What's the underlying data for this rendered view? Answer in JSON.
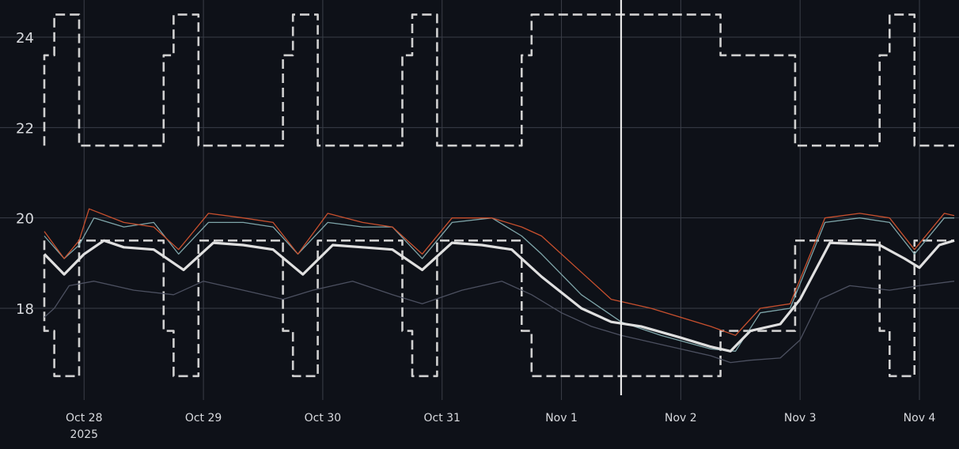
{
  "chart_data": {
    "type": "line",
    "title": "",
    "xlabel": "",
    "ylabel": "",
    "x_axis": {
      "ticks": [
        "2025-10-28",
        "2025-10-29",
        "2025-10-30",
        "2025-10-31",
        "2025-11-01",
        "2025-11-02",
        "2025-11-03",
        "2025-11-04"
      ],
      "tick_labels": [
        "Oct 28",
        "Oct 29",
        "Oct 30",
        "Oct 31",
        "Nov 1",
        "Nov 2",
        "Nov 3",
        "Nov 4"
      ],
      "year_label": "2025",
      "range": [
        "2025-10-27 16:00",
        "2025-11-04 07:00"
      ]
    },
    "y_axis": {
      "ticks": [
        18,
        20,
        22,
        24
      ],
      "range": [
        16.1,
        24.6
      ]
    },
    "grid": true,
    "now_marker": "2025-11-01 12:00",
    "colors": {
      "background": "#0e1118",
      "grid": "#3a3e48",
      "tick_text": "#d8dade",
      "setpoint": "#d0d0d0",
      "main": "#e0e0e0",
      "orange": "#c8502e",
      "teal": "#7fa6aa",
      "faint": "#4c5060",
      "now_line": "#e8e8e8"
    },
    "series": [
      {
        "role": "upper-setpoint",
        "style": "dashed",
        "color": "#d0d0d0",
        "points": [
          [
            "2025-10-27 16:00",
            21.6
          ],
          [
            "2025-10-27 16:00",
            23.6
          ],
          [
            "2025-10-27 18:00",
            23.6
          ],
          [
            "2025-10-27 18:00",
            24.5
          ],
          [
            "2025-10-27 23:00",
            24.5
          ],
          [
            "2025-10-27 23:00",
            21.6
          ],
          [
            "2025-10-28 16:00",
            21.6
          ],
          [
            "2025-10-28 16:00",
            23.6
          ],
          [
            "2025-10-28 18:00",
            23.6
          ],
          [
            "2025-10-28 18:00",
            24.5
          ],
          [
            "2025-10-28 23:00",
            24.5
          ],
          [
            "2025-10-28 23:00",
            21.6
          ],
          [
            "2025-10-29 16:00",
            21.6
          ],
          [
            "2025-10-29 16:00",
            23.6
          ],
          [
            "2025-10-29 18:00",
            23.6
          ],
          [
            "2025-10-29 18:00",
            24.5
          ],
          [
            "2025-10-29 23:00",
            24.5
          ],
          [
            "2025-10-29 23:00",
            21.6
          ],
          [
            "2025-10-30 16:00",
            21.6
          ],
          [
            "2025-10-30 16:00",
            23.6
          ],
          [
            "2025-10-30 18:00",
            23.6
          ],
          [
            "2025-10-30 18:00",
            24.5
          ],
          [
            "2025-10-30 23:00",
            24.5
          ],
          [
            "2025-10-30 23:00",
            21.6
          ],
          [
            "2025-10-31 16:00",
            21.6
          ],
          [
            "2025-10-31 16:00",
            23.6
          ],
          [
            "2025-10-31 18:00",
            23.6
          ],
          [
            "2025-10-31 18:00",
            24.5
          ],
          [
            "2025-11-02 08:00",
            24.5
          ],
          [
            "2025-11-02 08:00",
            23.6
          ],
          [
            "2025-11-02 23:00",
            23.6
          ],
          [
            "2025-11-02 23:00",
            21.6
          ],
          [
            "2025-11-03 16:00",
            21.6
          ],
          [
            "2025-11-03 16:00",
            23.6
          ],
          [
            "2025-11-03 18:00",
            23.6
          ],
          [
            "2025-11-03 18:00",
            24.5
          ],
          [
            "2025-11-03 23:00",
            24.5
          ],
          [
            "2025-11-03 23:00",
            21.6
          ],
          [
            "2025-11-04 07:00",
            21.6
          ]
        ]
      },
      {
        "role": "lower-setpoint",
        "style": "dashed",
        "color": "#d0d0d0",
        "points": [
          [
            "2025-10-27 16:00",
            19.5
          ],
          [
            "2025-10-27 16:00",
            17.5
          ],
          [
            "2025-10-27 18:00",
            17.5
          ],
          [
            "2025-10-27 18:00",
            16.5
          ],
          [
            "2025-10-27 23:00",
            16.5
          ],
          [
            "2025-10-27 23:00",
            19.5
          ],
          [
            "2025-10-28 16:00",
            19.5
          ],
          [
            "2025-10-28 16:00",
            17.5
          ],
          [
            "2025-10-28 18:00",
            17.5
          ],
          [
            "2025-10-28 18:00",
            16.5
          ],
          [
            "2025-10-28 23:00",
            16.5
          ],
          [
            "2025-10-28 23:00",
            19.5
          ],
          [
            "2025-10-29 16:00",
            19.5
          ],
          [
            "2025-10-29 16:00",
            17.5
          ],
          [
            "2025-10-29 18:00",
            17.5
          ],
          [
            "2025-10-29 18:00",
            16.5
          ],
          [
            "2025-10-29 23:00",
            16.5
          ],
          [
            "2025-10-29 23:00",
            19.5
          ],
          [
            "2025-10-30 16:00",
            19.5
          ],
          [
            "2025-10-30 16:00",
            17.5
          ],
          [
            "2025-10-30 18:00",
            17.5
          ],
          [
            "2025-10-30 18:00",
            16.5
          ],
          [
            "2025-10-30 23:00",
            16.5
          ],
          [
            "2025-10-30 23:00",
            19.5
          ],
          [
            "2025-10-31 16:00",
            19.5
          ],
          [
            "2025-10-31 16:00",
            17.5
          ],
          [
            "2025-10-31 18:00",
            17.5
          ],
          [
            "2025-10-31 18:00",
            16.5
          ],
          [
            "2025-11-02 08:00",
            16.5
          ],
          [
            "2025-11-02 08:00",
            17.5
          ],
          [
            "2025-11-02 23:00",
            17.5
          ],
          [
            "2025-11-02 23:00",
            19.5
          ],
          [
            "2025-11-03 16:00",
            19.5
          ],
          [
            "2025-11-03 16:00",
            17.5
          ],
          [
            "2025-11-03 18:00",
            17.5
          ],
          [
            "2025-11-03 18:00",
            16.5
          ],
          [
            "2025-11-03 23:00",
            16.5
          ],
          [
            "2025-11-03 23:00",
            19.5
          ],
          [
            "2025-11-04 07:00",
            19.5
          ]
        ]
      },
      {
        "role": "faint-temperature",
        "style": "solid",
        "color": "#4c5060",
        "points": [
          [
            "2025-10-27 16:00",
            17.8
          ],
          [
            "2025-10-27 18:00",
            18.0
          ],
          [
            "2025-10-27 21:00",
            18.5
          ],
          [
            "2025-10-28 02:00",
            18.6
          ],
          [
            "2025-10-28 10:00",
            18.4
          ],
          [
            "2025-10-28 18:00",
            18.3
          ],
          [
            "2025-10-29 00:00",
            18.6
          ],
          [
            "2025-10-29 08:00",
            18.4
          ],
          [
            "2025-10-29 16:00",
            18.2
          ],
          [
            "2025-10-29 22:00",
            18.4
          ],
          [
            "2025-10-30 06:00",
            18.6
          ],
          [
            "2025-10-30 14:00",
            18.3
          ],
          [
            "2025-10-30 20:00",
            18.1
          ],
          [
            "2025-10-31 04:00",
            18.4
          ],
          [
            "2025-10-31 12:00",
            18.6
          ],
          [
            "2025-10-31 18:00",
            18.3
          ],
          [
            "2025-11-01 00:00",
            17.9
          ],
          [
            "2025-11-01 06:00",
            17.6
          ],
          [
            "2025-11-01 12:00",
            17.4
          ],
          [
            "2025-11-01 20:00",
            17.2
          ],
          [
            "2025-11-02 06:00",
            16.95
          ],
          [
            "2025-11-02 10:00",
            16.8
          ],
          [
            "2025-11-02 14:00",
            16.85
          ],
          [
            "2025-11-02 20:00",
            16.9
          ],
          [
            "2025-11-03 00:00",
            17.3
          ],
          [
            "2025-11-03 04:00",
            18.2
          ],
          [
            "2025-11-03 10:00",
            18.5
          ],
          [
            "2025-11-03 18:00",
            18.4
          ],
          [
            "2025-11-04 00:00",
            18.5
          ],
          [
            "2025-11-04 07:00",
            18.6
          ]
        ]
      },
      {
        "role": "teal-temperature",
        "style": "solid",
        "color": "#7fa6aa",
        "points": [
          [
            "2025-10-27 16:00",
            19.6
          ],
          [
            "2025-10-27 20:00",
            19.1
          ],
          [
            "2025-10-27 23:00",
            19.4
          ],
          [
            "2025-10-28 02:00",
            20.0
          ],
          [
            "2025-10-28 08:00",
            19.8
          ],
          [
            "2025-10-28 14:00",
            19.9
          ],
          [
            "2025-10-28 19:00",
            19.2
          ],
          [
            "2025-10-29 01:00",
            19.9
          ],
          [
            "2025-10-29 08:00",
            19.9
          ],
          [
            "2025-10-29 14:00",
            19.8
          ],
          [
            "2025-10-29 19:00",
            19.2
          ],
          [
            "2025-10-30 01:00",
            19.9
          ],
          [
            "2025-10-30 08:00",
            19.8
          ],
          [
            "2025-10-30 14:00",
            19.8
          ],
          [
            "2025-10-30 20:00",
            19.1
          ],
          [
            "2025-10-31 02:00",
            19.9
          ],
          [
            "2025-10-31 10:00",
            20.0
          ],
          [
            "2025-10-31 16:00",
            19.6
          ],
          [
            "2025-10-31 20:00",
            19.2
          ],
          [
            "2025-11-01 04:00",
            18.3
          ],
          [
            "2025-11-01 12:00",
            17.7
          ],
          [
            "2025-11-01 20:00",
            17.4
          ],
          [
            "2025-11-02 06:00",
            17.1
          ],
          [
            "2025-11-02 11:00",
            17.05
          ],
          [
            "2025-11-02 16:00",
            17.9
          ],
          [
            "2025-11-02 22:00",
            18.0
          ],
          [
            "2025-11-03 05:00",
            19.9
          ],
          [
            "2025-11-03 12:00",
            20.0
          ],
          [
            "2025-11-03 18:00",
            19.9
          ],
          [
            "2025-11-03 23:00",
            19.2
          ],
          [
            "2025-11-04 05:00",
            20.0
          ],
          [
            "2025-11-04 07:00",
            20.0
          ]
        ]
      },
      {
        "role": "orange-temperature",
        "style": "solid",
        "color": "#c8502e",
        "points": [
          [
            "2025-10-27 16:00",
            19.7
          ],
          [
            "2025-10-27 20:00",
            19.1
          ],
          [
            "2025-10-27 23:00",
            19.5
          ],
          [
            "2025-10-28 01:00",
            20.2
          ],
          [
            "2025-10-28 08:00",
            19.9
          ],
          [
            "2025-10-28 14:00",
            19.8
          ],
          [
            "2025-10-28 19:00",
            19.3
          ],
          [
            "2025-10-29 01:00",
            20.1
          ],
          [
            "2025-10-29 08:00",
            20.0
          ],
          [
            "2025-10-29 14:00",
            19.9
          ],
          [
            "2025-10-29 19:00",
            19.2
          ],
          [
            "2025-10-30 01:00",
            20.1
          ],
          [
            "2025-10-30 08:00",
            19.9
          ],
          [
            "2025-10-30 14:00",
            19.8
          ],
          [
            "2025-10-30 20:00",
            19.2
          ],
          [
            "2025-10-31 02:00",
            20.0
          ],
          [
            "2025-10-31 10:00",
            20.0
          ],
          [
            "2025-10-31 16:00",
            19.8
          ],
          [
            "2025-10-31 20:00",
            19.6
          ],
          [
            "2025-11-01 04:00",
            18.8
          ],
          [
            "2025-11-01 10:00",
            18.2
          ],
          [
            "2025-11-01 18:00",
            18.0
          ],
          [
            "2025-11-02 06:00",
            17.6
          ],
          [
            "2025-11-02 11:00",
            17.4
          ],
          [
            "2025-11-02 16:00",
            18.0
          ],
          [
            "2025-11-02 22:00",
            18.1
          ],
          [
            "2025-11-03 05:00",
            20.0
          ],
          [
            "2025-11-03 12:00",
            20.1
          ],
          [
            "2025-11-03 18:00",
            20.0
          ],
          [
            "2025-11-03 23:00",
            19.3
          ],
          [
            "2025-11-04 05:00",
            20.1
          ],
          [
            "2025-11-04 07:00",
            20.05
          ]
        ]
      },
      {
        "role": "main-temperature",
        "style": "solid-bold",
        "color": "#e0e0e0",
        "points": [
          [
            "2025-10-27 16:00",
            19.2
          ],
          [
            "2025-10-27 20:00",
            18.75
          ],
          [
            "2025-10-28 00:00",
            19.2
          ],
          [
            "2025-10-28 04:00",
            19.5
          ],
          [
            "2025-10-28 08:00",
            19.35
          ],
          [
            "2025-10-28 14:00",
            19.3
          ],
          [
            "2025-10-28 20:00",
            18.85
          ],
          [
            "2025-10-29 02:00",
            19.45
          ],
          [
            "2025-10-29 08:00",
            19.4
          ],
          [
            "2025-10-29 14:00",
            19.3
          ],
          [
            "2025-10-29 20:00",
            18.75
          ],
          [
            "2025-10-30 02:00",
            19.4
          ],
          [
            "2025-10-30 08:00",
            19.35
          ],
          [
            "2025-10-30 14:00",
            19.3
          ],
          [
            "2025-10-30 20:00",
            18.85
          ],
          [
            "2025-10-31 02:00",
            19.45
          ],
          [
            "2025-10-31 08:00",
            19.4
          ],
          [
            "2025-10-31 14:00",
            19.3
          ],
          [
            "2025-10-31 20:00",
            18.7
          ],
          [
            "2025-11-01 04:00",
            18.0
          ],
          [
            "2025-11-01 10:00",
            17.7
          ],
          [
            "2025-11-01 16:00",
            17.6
          ],
          [
            "2025-11-02 00:00",
            17.35
          ],
          [
            "2025-11-02 06:00",
            17.15
          ],
          [
            "2025-11-02 10:00",
            17.05
          ],
          [
            "2025-11-02 14:00",
            17.5
          ],
          [
            "2025-11-02 20:00",
            17.65
          ],
          [
            "2025-11-03 00:00",
            18.2
          ],
          [
            "2025-11-03 06:00",
            19.45
          ],
          [
            "2025-11-03 16:00",
            19.4
          ],
          [
            "2025-11-03 21:00",
            19.1
          ],
          [
            "2025-11-04 00:00",
            18.9
          ],
          [
            "2025-11-04 04:00",
            19.4
          ],
          [
            "2025-11-04 07:00",
            19.5
          ]
        ]
      }
    ]
  }
}
